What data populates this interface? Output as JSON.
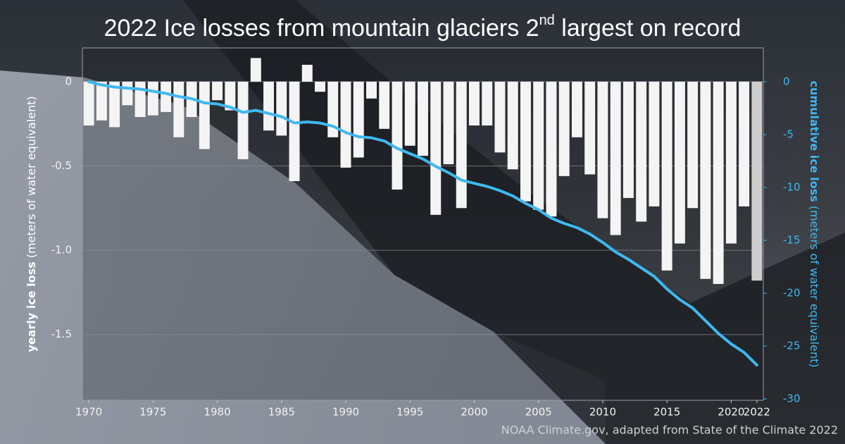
{
  "chart_data": {
    "type": "bar-line",
    "title": [
      "2022 Ice losses from mountain glaciers 2",
      "nd",
      " largest on record"
    ],
    "y_label": [
      "yearly ice loss",
      " (meters of water equivalent)"
    ],
    "y2_label": [
      "cumulative ice loss",
      " (meters of water equivalent)"
    ],
    "source": "NOAA Climate.gov, adapted from State of the Climate 2022",
    "x": [
      1970,
      1971,
      1972,
      1973,
      1974,
      1975,
      1976,
      1977,
      1978,
      1979,
      1980,
      1981,
      1982,
      1983,
      1984,
      1985,
      1986,
      1987,
      1988,
      1989,
      1990,
      1991,
      1992,
      1993,
      1994,
      1995,
      1996,
      1997,
      1998,
      1999,
      2000,
      2001,
      2002,
      2003,
      2004,
      2005,
      2006,
      2007,
      2008,
      2009,
      2010,
      2011,
      2012,
      2013,
      2014,
      2015,
      2016,
      2017,
      2018,
      2019,
      2020,
      2021,
      2022
    ],
    "xlim": [
      1969.5,
      2022.5
    ],
    "xticks": [
      1970,
      1975,
      1980,
      1985,
      1990,
      1995,
      2000,
      2005,
      2010,
      2015,
      2020,
      2022
    ],
    "ylim": [
      -1.89,
      0.2
    ],
    "yticks": [
      0,
      -0.5,
      {
        "value": -1,
        "label": "-1.0"
      },
      -1.5
    ],
    "y2lim": [
      -30.13,
      3.2
    ],
    "y2ticks": [
      0,
      -5,
      -10,
      -15,
      -20,
      -25,
      -30
    ],
    "grid": true,
    "series": [
      {
        "type": "bar",
        "color": "#f4f4f4",
        "colors": [
          "#f4f4f4",
          "#f4f4f4",
          "#f4f4f4",
          "#f4f4f4",
          "#f4f4f4",
          "#f4f4f4",
          "#f4f4f4",
          "#f4f4f4",
          "#f4f4f4",
          "#f4f4f4",
          "#f4f4f4",
          "#f4f4f4",
          "#f4f4f4",
          "#f4f4f4",
          "#f4f4f4",
          "#f4f4f4",
          "#f4f4f4",
          "#f4f4f4",
          "#f4f4f4",
          "#f4f4f4",
          "#f4f4f4",
          "#f4f4f4",
          "#f4f4f4",
          "#f4f4f4",
          "#f4f4f4",
          "#f4f4f4",
          "#f4f4f4",
          "#f4f4f4",
          "#f4f4f4",
          "#f4f4f4",
          "#f4f4f4",
          "#f4f4f4",
          "#f4f4f4",
          "#f4f4f4",
          "#f4f4f4",
          "#f4f4f4",
          "#f4f4f4",
          "#f4f4f4",
          "#f4f4f4",
          "#f4f4f4",
          "#f4f4f4",
          "#f4f4f4",
          "#f4f4f4",
          "#f4f4f4",
          "#f4f4f4",
          "#f4f4f4",
          "#f4f4f4",
          "#f4f4f4",
          "#f4f4f4",
          "#f4f4f4",
          "#f4f4f4",
          "#f4f4f4",
          "#cdcdcd"
        ],
        "values": [
          -0.26,
          -0.23,
          -0.27,
          -0.14,
          -0.21,
          -0.2,
          -0.18,
          -0.33,
          -0.21,
          -0.4,
          -0.11,
          -0.17,
          -0.46,
          0.14,
          -0.29,
          -0.32,
          -0.59,
          0.1,
          -0.06,
          -0.33,
          -0.51,
          -0.45,
          -0.1,
          -0.28,
          -0.64,
          -0.38,
          -0.44,
          -0.79,
          -0.49,
          -0.75,
          -0.26,
          -0.26,
          -0.42,
          -0.52,
          -0.71,
          -0.76,
          -0.8,
          -0.56,
          -0.33,
          -0.55,
          -0.81,
          -0.91,
          -0.69,
          -0.83,
          -0.74,
          -1.12,
          -0.96,
          -0.75,
          -1.17,
          -1.2,
          -0.96,
          -0.74,
          -1.18
        ]
      },
      {
        "type": "line",
        "axis": "y2",
        "color": "#3fb8f0",
        "values": [
          0,
          -0.3,
          -0.5,
          -0.6,
          -0.7,
          -0.9,
          -1.1,
          -1.4,
          -1.6,
          -2.0,
          -2.1,
          -2.4,
          -2.9,
          -2.7,
          -3.0,
          -3.3,
          -3.9,
          -3.8,
          -3.9,
          -4.2,
          -4.8,
          -5.2,
          -5.3,
          -5.6,
          -6.3,
          -6.8,
          -7.3,
          -8.0,
          -8.6,
          -9.3,
          -9.6,
          -9.9,
          -10.3,
          -10.8,
          -11.5,
          -12.1,
          -12.9,
          -13.4,
          -13.8,
          -14.4,
          -15.2,
          -16.1,
          -16.8,
          -17.6,
          -18.4,
          -19.6,
          -20.6,
          -21.4,
          -22.6,
          -23.8,
          -24.8,
          -25.6,
          -26.8
        ]
      }
    ]
  }
}
